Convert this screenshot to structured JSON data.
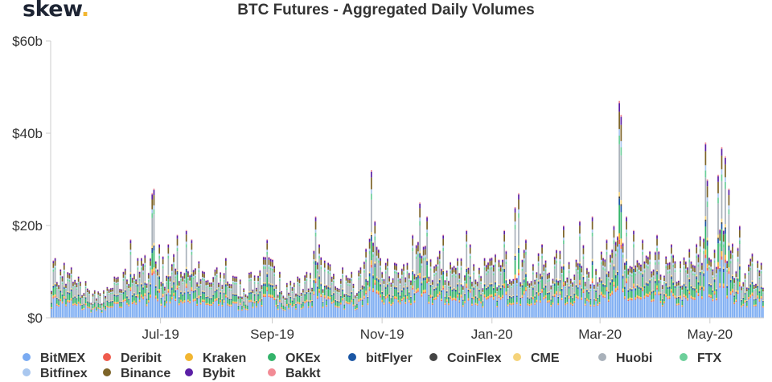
{
  "logo": {
    "text": "skew",
    "dot": "."
  },
  "chart_data": {
    "type": "bar",
    "stacked": true,
    "title": "BTC Futures - Aggregated Daily Volumes",
    "xlabel": "",
    "ylabel": "",
    "y_unit": "USD billions",
    "ylim": [
      0,
      60
    ],
    "y_ticks": [
      0,
      20,
      40,
      60
    ],
    "y_tick_labels": [
      "$0",
      "$20b",
      "$40b",
      "$60b"
    ],
    "x_ticks": [
      "2019-07-01",
      "2019-09-01",
      "2019-11-01",
      "2020-01-01",
      "2020-03-01",
      "2020-05-01"
    ],
    "x_tick_labels": [
      "Jul-19",
      "Sep-19",
      "Nov-19",
      "Jan-20",
      "Mar-20",
      "May-20"
    ],
    "x_range": [
      "2019-05-01",
      "2020-05-31"
    ],
    "grid": false,
    "legend_position": "bottom",
    "totals": [
      {
        "date": "2019-05-03",
        "v": 13
      },
      {
        "date": "2019-05-08",
        "v": 12
      },
      {
        "date": "2019-05-12",
        "v": 11
      },
      {
        "date": "2019-05-16",
        "v": 9
      },
      {
        "date": "2019-05-20",
        "v": 8
      },
      {
        "date": "2019-05-25",
        "v": 6
      },
      {
        "date": "2019-05-30",
        "v": 6
      },
      {
        "date": "2019-06-05",
        "v": 9
      },
      {
        "date": "2019-06-10",
        "v": 10
      },
      {
        "date": "2019-06-14",
        "v": 17
      },
      {
        "date": "2019-06-20",
        "v": 13
      },
      {
        "date": "2019-06-26",
        "v": 27
      },
      {
        "date": "2019-06-27",
        "v": 28
      },
      {
        "date": "2019-06-30",
        "v": 16
      },
      {
        "date": "2019-07-05",
        "v": 16
      },
      {
        "date": "2019-07-10",
        "v": 18
      },
      {
        "date": "2019-07-15",
        "v": 19
      },
      {
        "date": "2019-07-18",
        "v": 17
      },
      {
        "date": "2019-07-25",
        "v": 10
      },
      {
        "date": "2019-08-01",
        "v": 11
      },
      {
        "date": "2019-08-06",
        "v": 13
      },
      {
        "date": "2019-08-12",
        "v": 9
      },
      {
        "date": "2019-08-20",
        "v": 10
      },
      {
        "date": "2019-08-29",
        "v": 17
      },
      {
        "date": "2019-09-05",
        "v": 10
      },
      {
        "date": "2019-09-15",
        "v": 9
      },
      {
        "date": "2019-09-20",
        "v": 10
      },
      {
        "date": "2019-09-25",
        "v": 22
      },
      {
        "date": "2019-09-27",
        "v": 16
      },
      {
        "date": "2019-10-02",
        "v": 12
      },
      {
        "date": "2019-10-10",
        "v": 11
      },
      {
        "date": "2019-10-15",
        "v": 10
      },
      {
        "date": "2019-10-20",
        "v": 11
      },
      {
        "date": "2019-10-26",
        "v": 32
      },
      {
        "date": "2019-10-28",
        "v": 21
      },
      {
        "date": "2019-11-08",
        "v": 12
      },
      {
        "date": "2019-11-18",
        "v": 18
      },
      {
        "date": "2019-11-22",
        "v": 25
      },
      {
        "date": "2019-11-26",
        "v": 22
      },
      {
        "date": "2019-12-05",
        "v": 18
      },
      {
        "date": "2019-12-18",
        "v": 19
      },
      {
        "date": "2019-12-20",
        "v": 16
      },
      {
        "date": "2019-12-28",
        "v": 13
      },
      {
        "date": "2020-01-08",
        "v": 19
      },
      {
        "date": "2020-01-14",
        "v": 24
      },
      {
        "date": "2020-01-16",
        "v": 27
      },
      {
        "date": "2020-01-20",
        "v": 17
      },
      {
        "date": "2020-01-29",
        "v": 16
      },
      {
        "date": "2020-02-10",
        "v": 20
      },
      {
        "date": "2020-02-19",
        "v": 21
      },
      {
        "date": "2020-02-26",
        "v": 22
      },
      {
        "date": "2020-03-05",
        "v": 17
      },
      {
        "date": "2020-03-09",
        "v": 20
      },
      {
        "date": "2020-03-12",
        "v": 47
      },
      {
        "date": "2020-03-13",
        "v": 44
      },
      {
        "date": "2020-03-16",
        "v": 22
      },
      {
        "date": "2020-03-20",
        "v": 19
      },
      {
        "date": "2020-03-25",
        "v": 17
      },
      {
        "date": "2020-04-02",
        "v": 18
      },
      {
        "date": "2020-04-10",
        "v": 16
      },
      {
        "date": "2020-04-20",
        "v": 15
      },
      {
        "date": "2020-04-29",
        "v": 38
      },
      {
        "date": "2020-04-30",
        "v": 30
      },
      {
        "date": "2020-05-06",
        "v": 31
      },
      {
        "date": "2020-05-08",
        "v": 37
      },
      {
        "date": "2020-05-10",
        "v": 35
      },
      {
        "date": "2020-05-12",
        "v": 28
      },
      {
        "date": "2020-05-18",
        "v": 20
      },
      {
        "date": "2020-05-25",
        "v": 14
      },
      {
        "date": "2020-05-30",
        "v": 12
      }
    ],
    "series": [
      {
        "name": "BitMEX",
        "color": "#7aabf2",
        "share": 0.34
      },
      {
        "name": "Deribit",
        "color": "#ef5b4d",
        "share": 0.02
      },
      {
        "name": "Kraken",
        "color": "#f2b631",
        "share": 0.03
      },
      {
        "name": "OKEx",
        "color": "#33b36a",
        "share": 0.13
      },
      {
        "name": "bitFlyer",
        "color": "#1a56a4",
        "share": 0.03
      },
      {
        "name": "CoinFlex",
        "color": "#444444",
        "share": 0.01
      },
      {
        "name": "CME",
        "color": "#f5d37a",
        "share": 0.02
      },
      {
        "name": "Huobi",
        "color": "#a9b1ba",
        "share": 0.22
      },
      {
        "name": "FTX",
        "color": "#6ccf9a",
        "share": 0.04
      },
      {
        "name": "Bitfinex",
        "color": "#a9c7ef",
        "share": 0.03
      },
      {
        "name": "Binance",
        "color": "#7d6428",
        "share": 0.08
      },
      {
        "name": "Bybit",
        "color": "#5b1fa6",
        "share": 0.04
      },
      {
        "name": "Bakkt",
        "color": "#f28b95",
        "share": 0.01
      }
    ]
  },
  "legend_rows": [
    [
      0,
      1,
      2,
      3,
      4,
      5,
      6,
      7,
      8
    ],
    [
      9,
      10,
      11,
      12
    ]
  ]
}
